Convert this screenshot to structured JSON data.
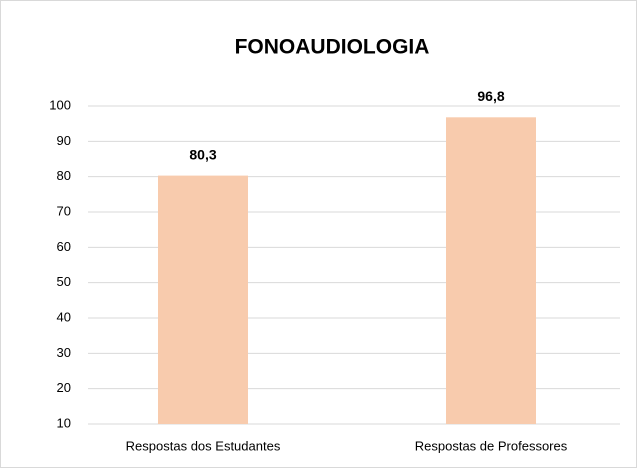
{
  "chart_data": {
    "type": "bar",
    "title": "FONOAUDIOLOGIA",
    "categories": [
      "Respostas dos Estudantes",
      "Respostas de Professores"
    ],
    "values": [
      80.3,
      96.8
    ],
    "value_labels": [
      "80,3",
      "96,8"
    ],
    "color": "#f8cbad",
    "ylim": [
      10,
      100
    ],
    "yticks": [
      10,
      20,
      30,
      40,
      50,
      60,
      70,
      80,
      90,
      100
    ],
    "grid": true
  }
}
